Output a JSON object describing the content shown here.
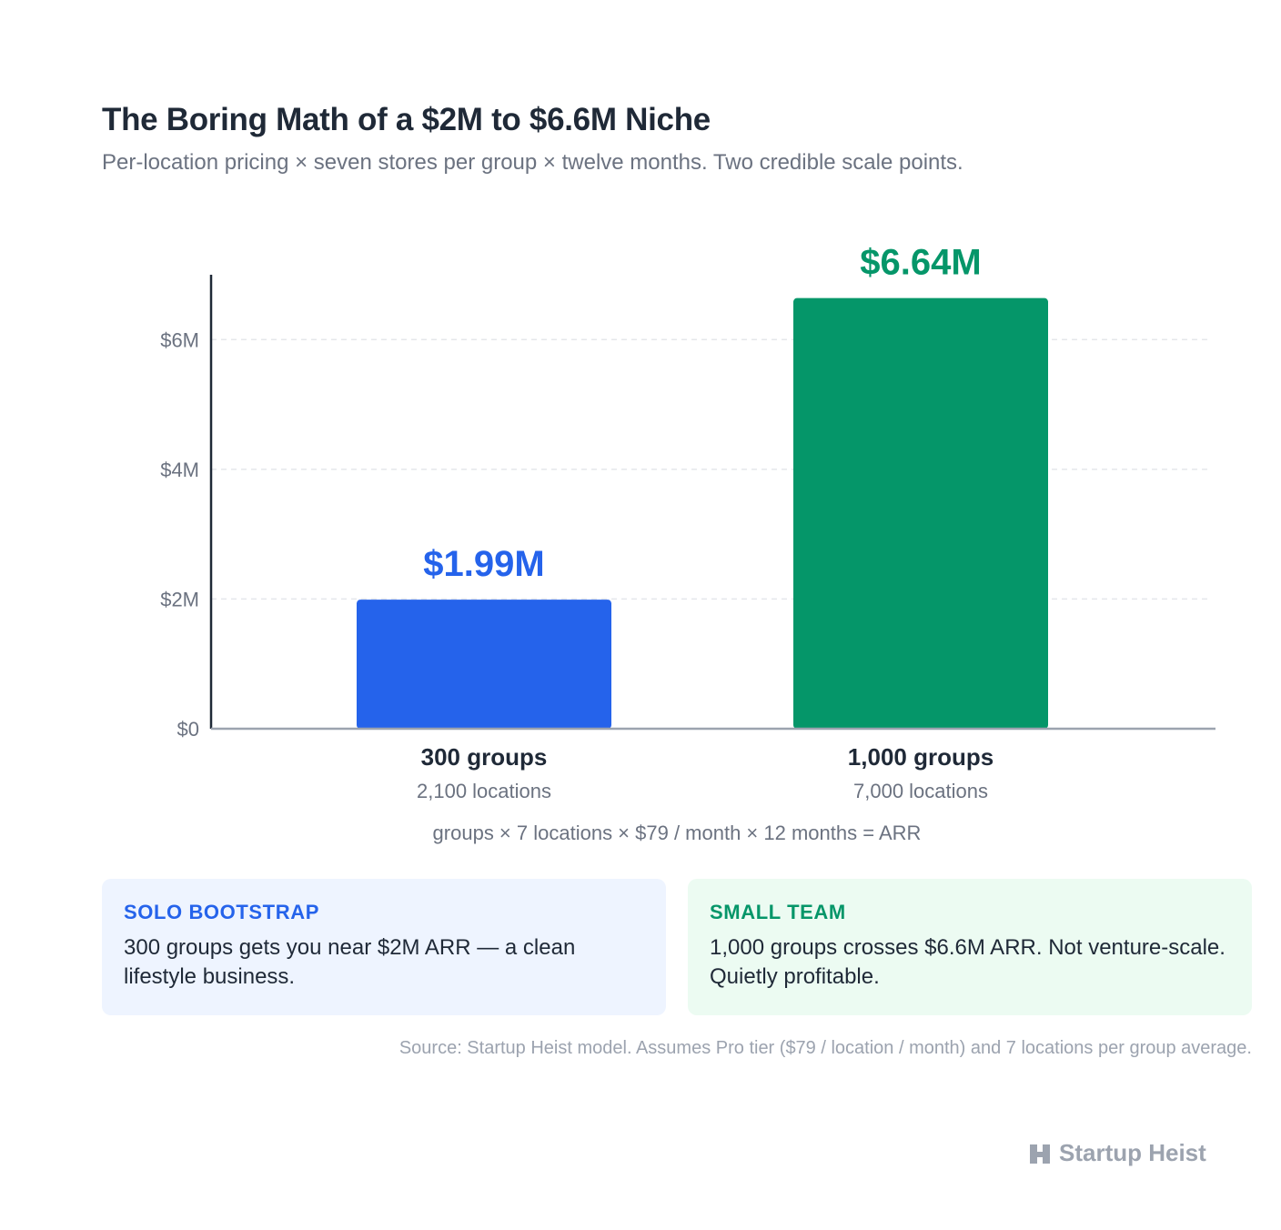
{
  "title": "The Boring Math of a $2M to $6.6M Niche",
  "subtitle": "Per-location pricing × seven stores per group × twelve months. Two credible scale points.",
  "chart_data": {
    "type": "bar",
    "categories": [
      "300 groups",
      "1,000 groups"
    ],
    "category_sublabels": [
      "2,100 locations",
      "7,000 locations"
    ],
    "values": [
      1.99,
      6.64
    ],
    "data_labels": [
      "$1.99M",
      "$6.64M"
    ],
    "unit": "$M",
    "ylim": [
      0,
      7
    ],
    "yticks": [
      0,
      2,
      4,
      6
    ],
    "ytick_labels": [
      "$0",
      "$2M",
      "$4M",
      "$6M"
    ],
    "grid": true,
    "bar_colors": [
      "#2563eb",
      "#059669"
    ]
  },
  "formula": "groups × 7 locations × $79 / month × 12 months = ARR",
  "cards": [
    {
      "heading": "SOLO BOOTSTRAP",
      "text": "300 groups gets you near $2M ARR — a clean lifestyle business.",
      "accent": "#2563eb"
    },
    {
      "heading": "SMALL TEAM",
      "text": "1,000 groups crosses $6.6M ARR. Not venture-scale. Quietly profitable.",
      "accent": "#059669"
    }
  ],
  "source": "Source: Startup Heist model. Assumes Pro tier ($79 / location / month) and 7 locations per group average.",
  "brand": {
    "name": "Startup Heist",
    "icon": "building-logo-icon"
  }
}
